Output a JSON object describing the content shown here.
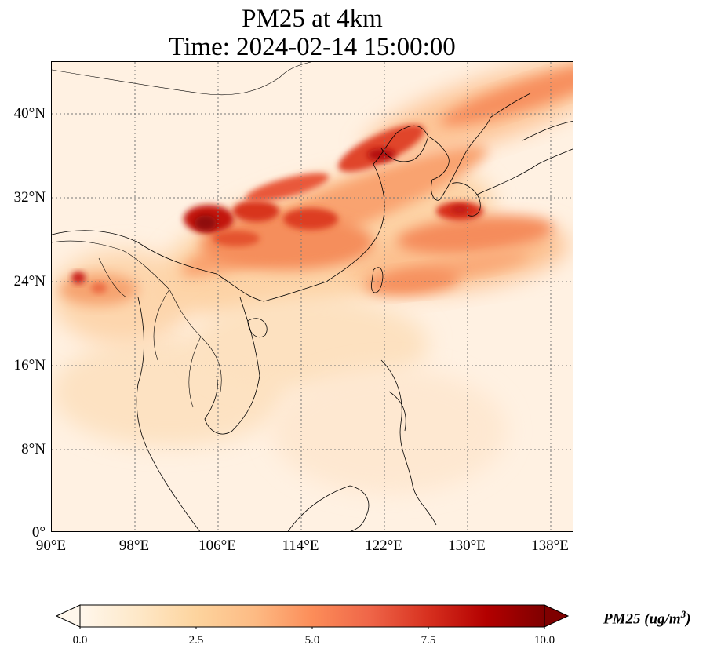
{
  "title_line1": "PM25 at 4km",
  "title_line2": "Time: 2024-02-14 15:00:00",
  "lat_labels": [
    "40°N",
    "32°N",
    "24°N",
    "16°N",
    "8°N",
    "0°"
  ],
  "lon_labels": [
    "90°E",
    "98°E",
    "106°E",
    "114°E",
    "122°E",
    "130°E",
    "138°E"
  ],
  "colorbar": {
    "ticks": [
      "0.0",
      "2.5",
      "5.0",
      "7.5",
      "10.0"
    ],
    "label_main": "PM25 (ug/m",
    "label_sup": "3",
    "label_end": ")",
    "colormap": "OrRd",
    "min": 0,
    "max": 10,
    "extend": "both"
  },
  "map": {
    "extent_lon": [
      90,
      140
    ],
    "extent_lat": [
      0,
      45
    ],
    "gridlines": "dotted",
    "features": [
      "coastlines",
      "country borders"
    ]
  }
}
